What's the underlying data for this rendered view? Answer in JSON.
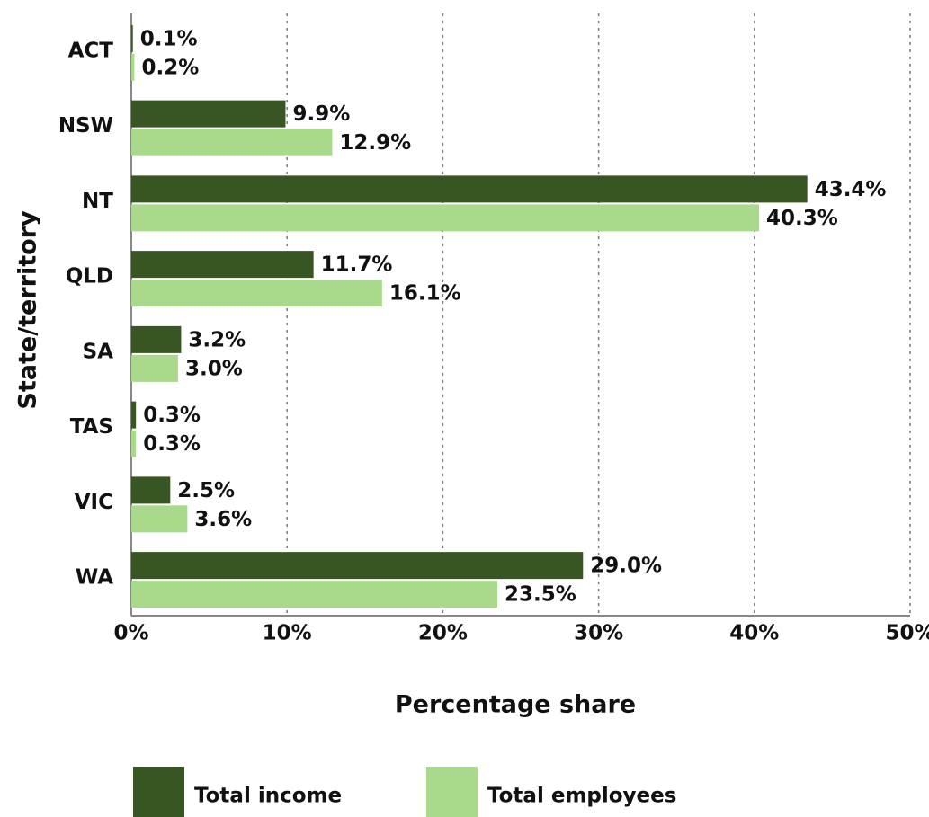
{
  "chart_data": {
    "type": "hbar",
    "x_label": "Percentage share",
    "y_label": "State/territory",
    "categories": [
      "ACT",
      "NSW",
      "NT",
      "QLD",
      "SA",
      "TAS",
      "VIC",
      "WA"
    ],
    "series": [
      {
        "name": "Total income",
        "color": "#375623",
        "values": [
          0.1,
          9.9,
          43.4,
          11.7,
          3.2,
          0.3,
          2.5,
          29.0
        ],
        "value_labels": [
          "0.1%",
          "9.9%",
          "43.4%",
          "11.7%",
          "3.2%",
          "0.3%",
          "2.5%",
          "29.0%"
        ]
      },
      {
        "name": "Total employees",
        "color": "#a9d98b",
        "values": [
          0.2,
          12.9,
          40.3,
          16.1,
          3.0,
          0.3,
          3.6,
          23.5
        ],
        "value_labels": [
          "0.2%",
          "12.9%",
          "40.3%",
          "16.1%",
          "3.0%",
          "0.3%",
          "3.6%",
          "23.5%"
        ]
      }
    ],
    "xlim": [
      0,
      50
    ],
    "xticks": [
      {
        "value": 0,
        "label": "0%"
      },
      {
        "value": 10,
        "label": "10%"
      },
      {
        "value": 20,
        "label": "20%"
      },
      {
        "value": 30,
        "label": "30%"
      },
      {
        "value": 40,
        "label": "40%"
      },
      {
        "value": 50,
        "label": "50%"
      }
    ],
    "grid": true
  }
}
